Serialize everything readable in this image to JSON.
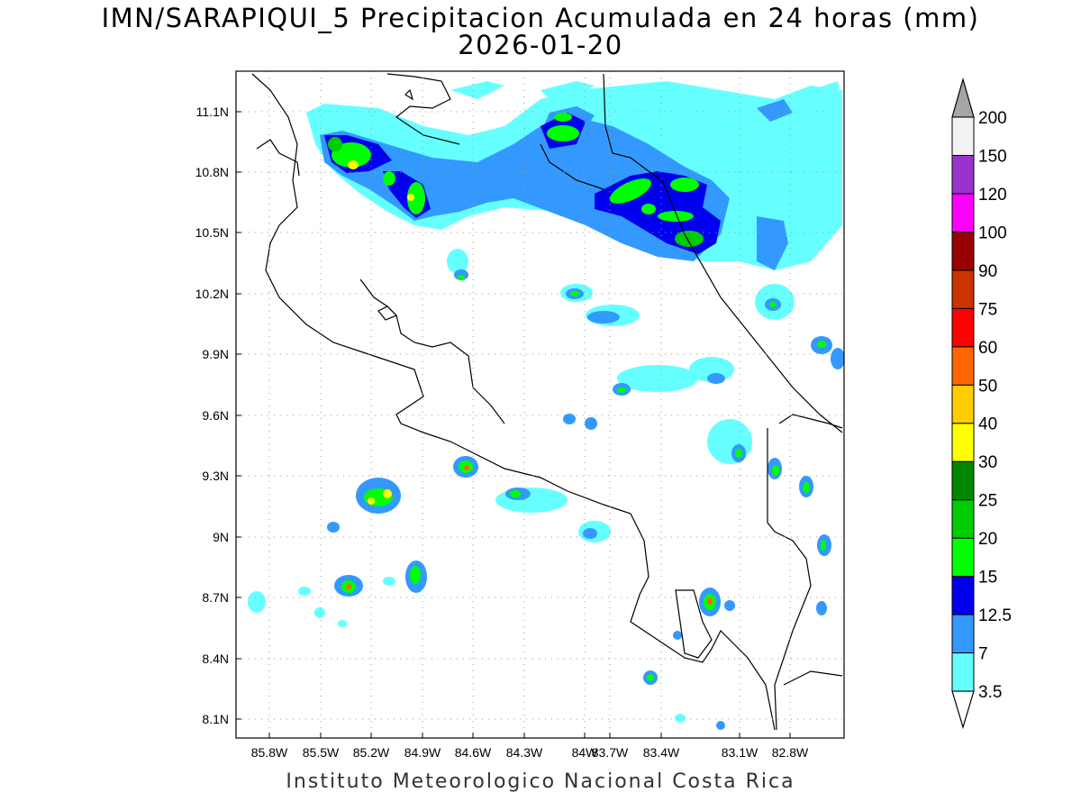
{
  "title": "IMN/SARAPIQUI_5 Precipitacion Acumulada en 24 horas (mm)",
  "date": "2026-01-20",
  "credit": "Instituto Meteorologico Nacional Costa Rica",
  "map": {
    "lon_range": [
      -86.1,
      -82.6
    ],
    "lat_range": [
      8.0,
      11.3
    ],
    "lon_ticks": [
      "85.8W",
      "85.5W",
      "85.2W",
      "84.9W",
      "84.6W",
      "84.3W",
      "84W",
      "83.7W",
      "83.4W",
      "83.1W",
      "82.8W"
    ],
    "lat_ticks": [
      "11.1N",
      "10.8N",
      "10.5N",
      "10.2N",
      "9.9N",
      "9.6N",
      "9.3N",
      "9N",
      "8.7N",
      "8.4N",
      "8.1N"
    ],
    "grid": "dotted"
  },
  "colorbar": {
    "levels": [
      "3.5",
      "7",
      "12.5",
      "15",
      "20",
      "25",
      "30",
      "40",
      "50",
      "60",
      "75",
      "90",
      "100",
      "120",
      "150",
      "200"
    ],
    "colors": [
      "#66ffff",
      "#3399ff",
      "#0000ee",
      "#00ff00",
      "#00cc00",
      "#008800",
      "#ffff00",
      "#ffcc00",
      "#ff6600",
      "#ff0000",
      "#cc3300",
      "#990000",
      "#ff00ff",
      "#9933cc",
      "#f2f2f2",
      "#a6a6a6"
    ]
  }
}
